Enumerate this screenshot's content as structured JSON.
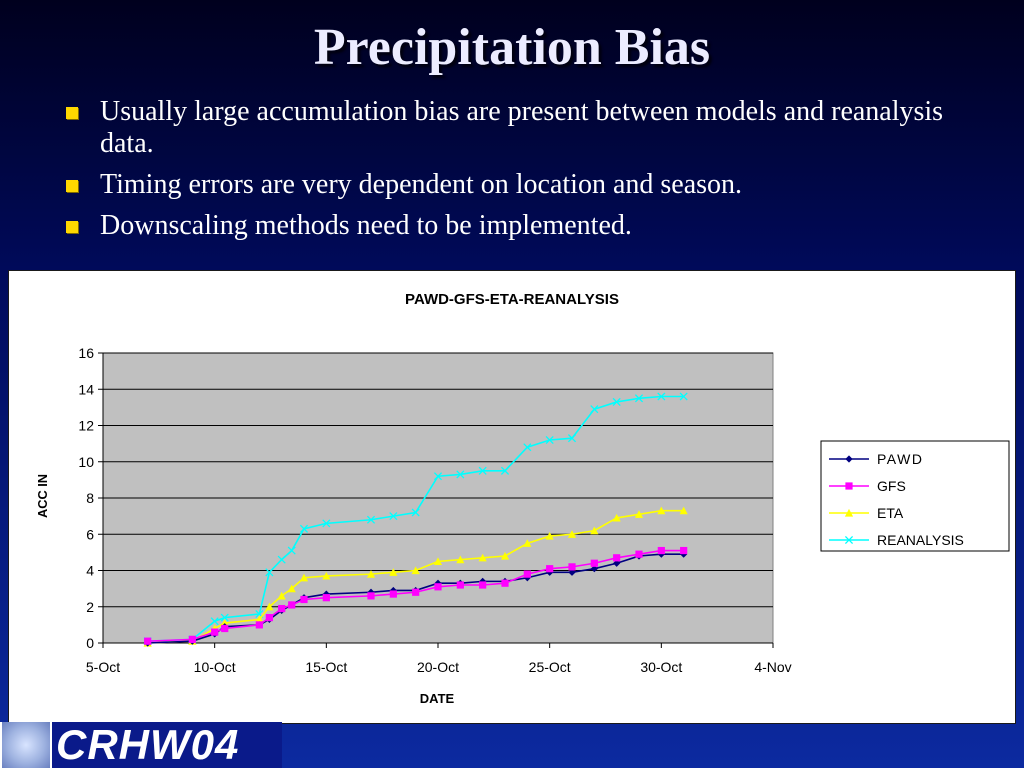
{
  "slide": {
    "title": "Precipitation Bias",
    "bullets": [
      "Usually large accumulation bias are present between models and reanalysis data.",
      "Timing errors are very dependent on location and season.",
      "Downscaling methods need to be implemented."
    ],
    "footer_logo": "CRHW04"
  },
  "colors": {
    "bullet": "#ffd800",
    "plot_background": "#c0c0c0",
    "PAWD": "#000080",
    "GFS": "#ff00ff",
    "ETA": "#ffff00",
    "REANALYSIS": "#00ffff"
  },
  "chart_data": {
    "type": "line",
    "title": "PAWD-GFS-ETA-REANALYSIS",
    "xlabel": "DATE",
    "ylabel": "ACC IN",
    "x_ticks": [
      "5-Oct",
      "10-Oct",
      "15-Oct",
      "20-Oct",
      "25-Oct",
      "30-Oct",
      "4-Nov"
    ],
    "xlim": [
      "5-Oct",
      "4-Nov"
    ],
    "y_ticks": [
      0,
      2,
      4,
      6,
      8,
      10,
      12,
      14,
      16
    ],
    "ylim": [
      0,
      16
    ],
    "grid": "horizontal",
    "legend_position": "right",
    "series": [
      {
        "name": "PAWD",
        "marker": "diamond",
        "points": [
          [
            "7-Oct",
            0
          ],
          [
            "9-Oct",
            0.1
          ],
          [
            "10-Oct",
            0.5
          ],
          [
            "10-Oct",
            0.9
          ],
          [
            "12-Oct",
            1.0
          ],
          [
            "12-Oct",
            1.3
          ],
          [
            "13-Oct",
            1.8
          ],
          [
            "13-Oct",
            2.1
          ],
          [
            "14-Oct",
            2.5
          ],
          [
            "15-Oct",
            2.7
          ],
          [
            "17-Oct",
            2.8
          ],
          [
            "18-Oct",
            2.9
          ],
          [
            "19-Oct",
            2.9
          ],
          [
            "20-Oct",
            3.3
          ],
          [
            "21-Oct",
            3.3
          ],
          [
            "22-Oct",
            3.4
          ],
          [
            "23-Oct",
            3.4
          ],
          [
            "24-Oct",
            3.6
          ],
          [
            "25-Oct",
            3.9
          ],
          [
            "26-Oct",
            3.9
          ],
          [
            "27-Oct",
            4.1
          ],
          [
            "28-Oct",
            4.4
          ],
          [
            "29-Oct",
            4.8
          ],
          [
            "30-Oct",
            4.9
          ],
          [
            "31-Oct",
            4.9
          ]
        ]
      },
      {
        "name": "GFS",
        "marker": "square",
        "points": [
          [
            "7-Oct",
            0.1
          ],
          [
            "9-Oct",
            0.2
          ],
          [
            "10-Oct",
            0.6
          ],
          [
            "10-Oct",
            0.8
          ],
          [
            "12-Oct",
            1.0
          ],
          [
            "12-Oct",
            1.4
          ],
          [
            "13-Oct",
            1.9
          ],
          [
            "13-Oct",
            2.1
          ],
          [
            "14-Oct",
            2.4
          ],
          [
            "15-Oct",
            2.5
          ],
          [
            "17-Oct",
            2.6
          ],
          [
            "18-Oct",
            2.7
          ],
          [
            "19-Oct",
            2.8
          ],
          [
            "20-Oct",
            3.1
          ],
          [
            "21-Oct",
            3.2
          ],
          [
            "22-Oct",
            3.2
          ],
          [
            "23-Oct",
            3.3
          ],
          [
            "24-Oct",
            3.8
          ],
          [
            "25-Oct",
            4.1
          ],
          [
            "26-Oct",
            4.2
          ],
          [
            "27-Oct",
            4.4
          ],
          [
            "28-Oct",
            4.7
          ],
          [
            "29-Oct",
            4.9
          ],
          [
            "30-Oct",
            5.1
          ],
          [
            "31-Oct",
            5.1
          ]
        ]
      },
      {
        "name": "ETA",
        "marker": "triangle",
        "points": [
          [
            "7-Oct",
            0
          ],
          [
            "9-Oct",
            0.1
          ],
          [
            "10-Oct",
            0.8
          ],
          [
            "10-Oct",
            1.1
          ],
          [
            "12-Oct",
            1.3
          ],
          [
            "12-Oct",
            2.0
          ],
          [
            "13-Oct",
            2.6
          ],
          [
            "13-Oct",
            3.0
          ],
          [
            "14-Oct",
            3.6
          ],
          [
            "15-Oct",
            3.7
          ],
          [
            "17-Oct",
            3.8
          ],
          [
            "18-Oct",
            3.9
          ],
          [
            "19-Oct",
            4.0
          ],
          [
            "20-Oct",
            4.5
          ],
          [
            "21-Oct",
            4.6
          ],
          [
            "22-Oct",
            4.7
          ],
          [
            "23-Oct",
            4.8
          ],
          [
            "24-Oct",
            5.5
          ],
          [
            "25-Oct",
            5.9
          ],
          [
            "26-Oct",
            6.0
          ],
          [
            "27-Oct",
            6.2
          ],
          [
            "28-Oct",
            6.9
          ],
          [
            "29-Oct",
            7.1
          ],
          [
            "30-Oct",
            7.3
          ],
          [
            "31-Oct",
            7.3
          ]
        ]
      },
      {
        "name": "REANALYSIS",
        "marker": "x",
        "points": [
          [
            "7-Oct",
            0.1
          ],
          [
            "9-Oct",
            0.2
          ],
          [
            "10-Oct",
            1.2
          ],
          [
            "10-Oct",
            1.4
          ],
          [
            "12-Oct",
            1.6
          ],
          [
            "12-Oct",
            3.9
          ],
          [
            "13-Oct",
            4.6
          ],
          [
            "13-Oct",
            5.1
          ],
          [
            "14-Oct",
            6.3
          ],
          [
            "15-Oct",
            6.6
          ],
          [
            "17-Oct",
            6.8
          ],
          [
            "18-Oct",
            7.0
          ],
          [
            "19-Oct",
            7.2
          ],
          [
            "20-Oct",
            9.2
          ],
          [
            "21-Oct",
            9.3
          ],
          [
            "22-Oct",
            9.5
          ],
          [
            "23-Oct",
            9.5
          ],
          [
            "24-Oct",
            10.8
          ],
          [
            "25-Oct",
            11.2
          ],
          [
            "26-Oct",
            11.3
          ],
          [
            "27-Oct",
            12.9
          ],
          [
            "28-Oct",
            13.3
          ],
          [
            "29-Oct",
            13.5
          ],
          [
            "30-Oct",
            13.6
          ],
          [
            "31-Oct",
            13.6
          ]
        ]
      }
    ]
  }
}
